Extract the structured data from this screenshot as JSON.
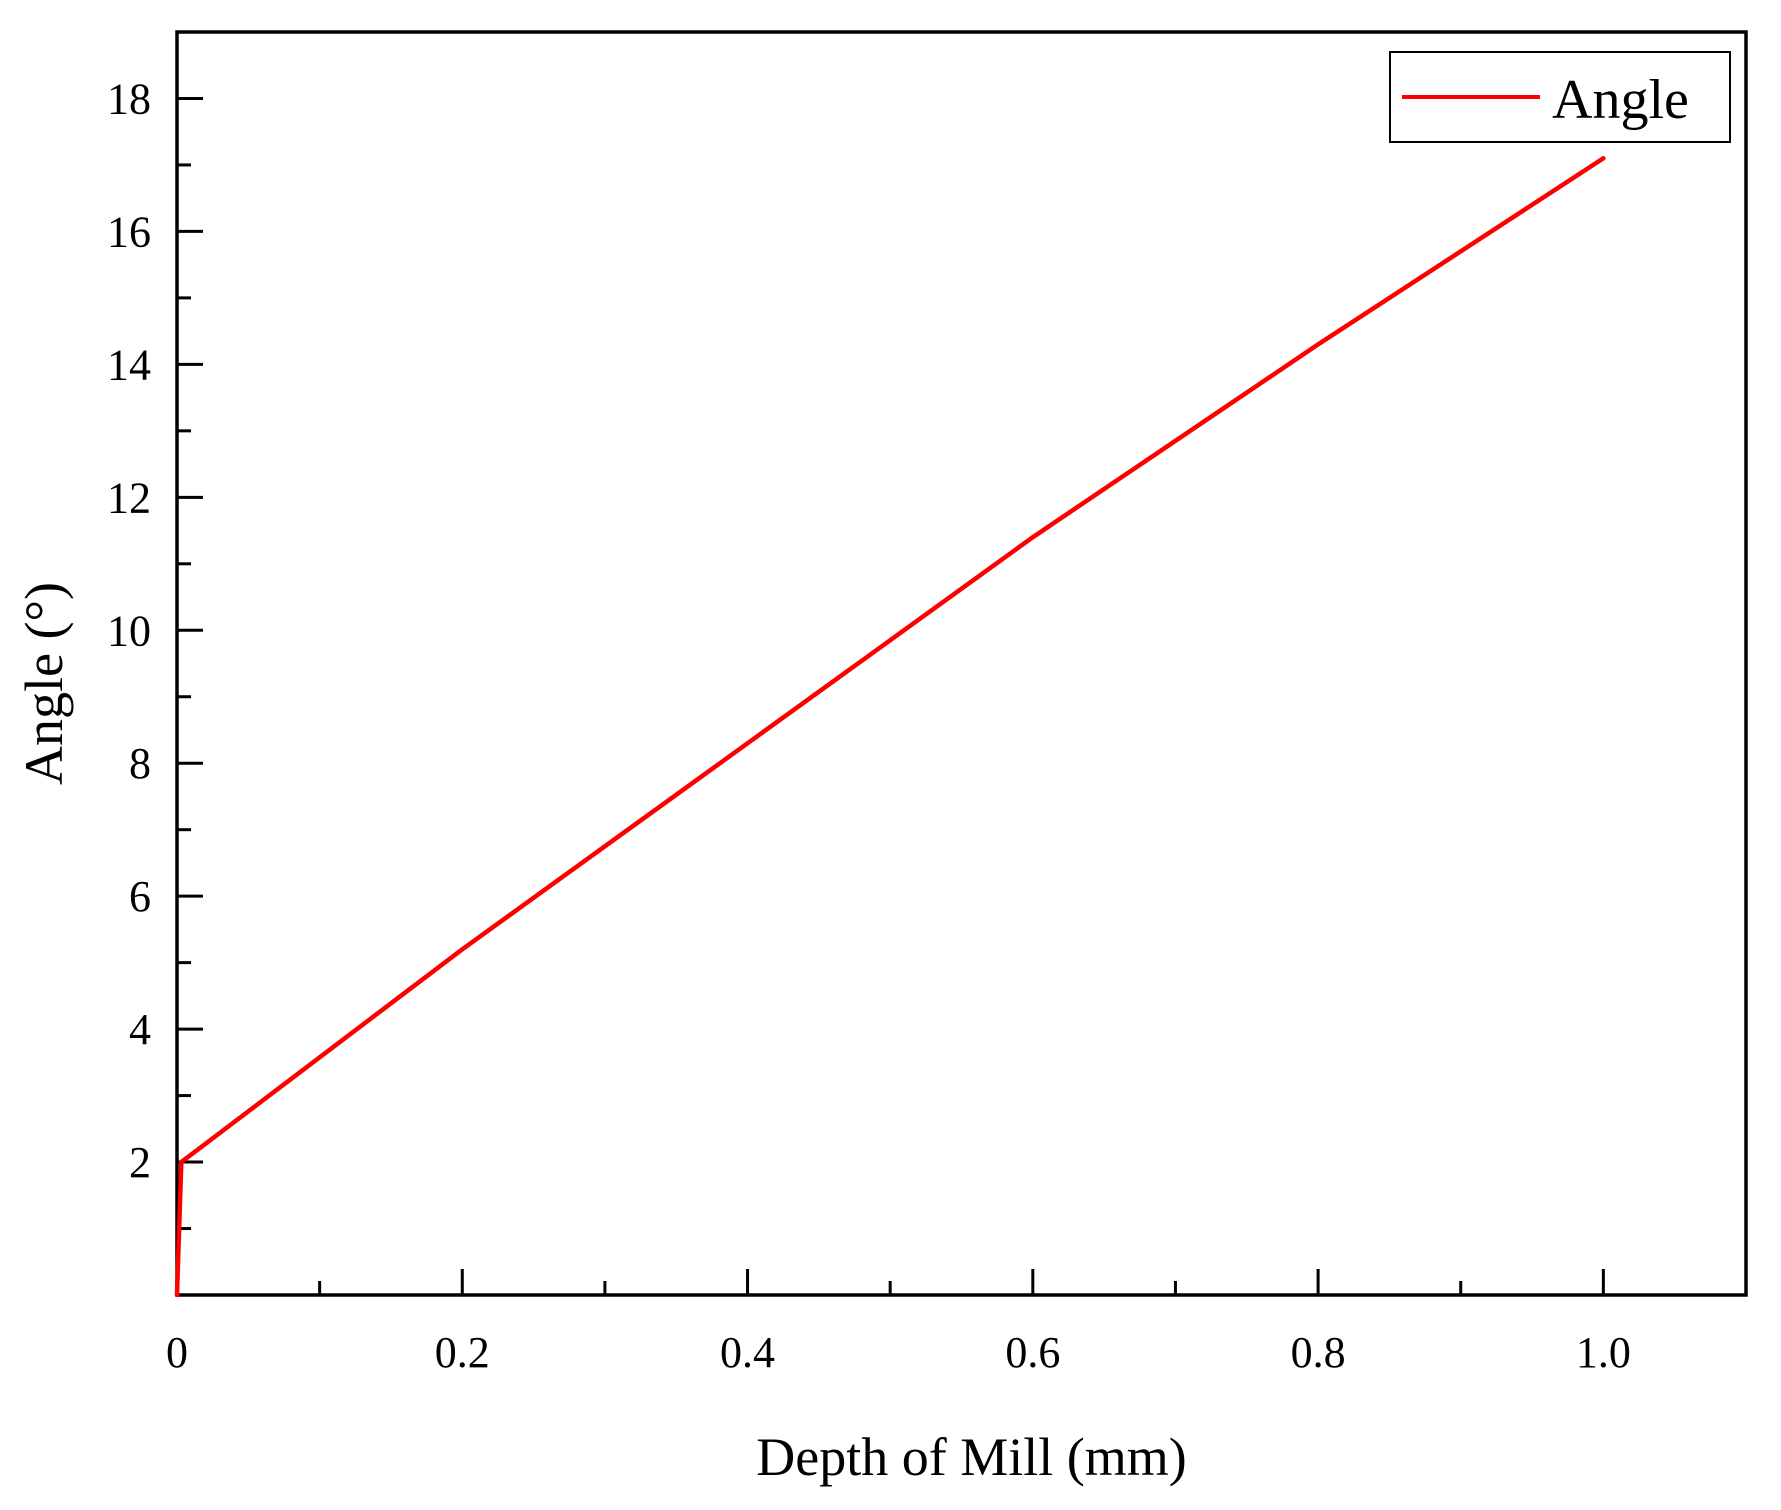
{
  "chart_data": {
    "type": "line",
    "title": "",
    "xlabel": "Depth of Mill (mm)",
    "ylabel": "Angle (°)",
    "xlim": [
      0,
      1.1
    ],
    "ylim": [
      0,
      19
    ],
    "x_ticks": [
      0,
      0.2,
      0.4,
      0.6,
      0.8,
      1.0
    ],
    "x_tick_labels": [
      "0",
      "0.2",
      "0.4",
      "0.6",
      "0.8",
      "1.0"
    ],
    "y_ticks": [
      2,
      4,
      6,
      8,
      10,
      12,
      14,
      16,
      18
    ],
    "y_tick_labels": [
      "2",
      "4",
      "6",
      "8",
      "10",
      "12",
      "14",
      "16",
      "18"
    ],
    "grid": false,
    "legend_position": "top-right",
    "series": [
      {
        "name": "Angle",
        "color": "#ff0000",
        "x": [
          0,
          0.003,
          0.2,
          0.4,
          0.6,
          0.8,
          1.0
        ],
        "y": [
          0,
          2.0,
          5.2,
          8.3,
          11.4,
          14.3,
          17.1
        ]
      }
    ]
  }
}
